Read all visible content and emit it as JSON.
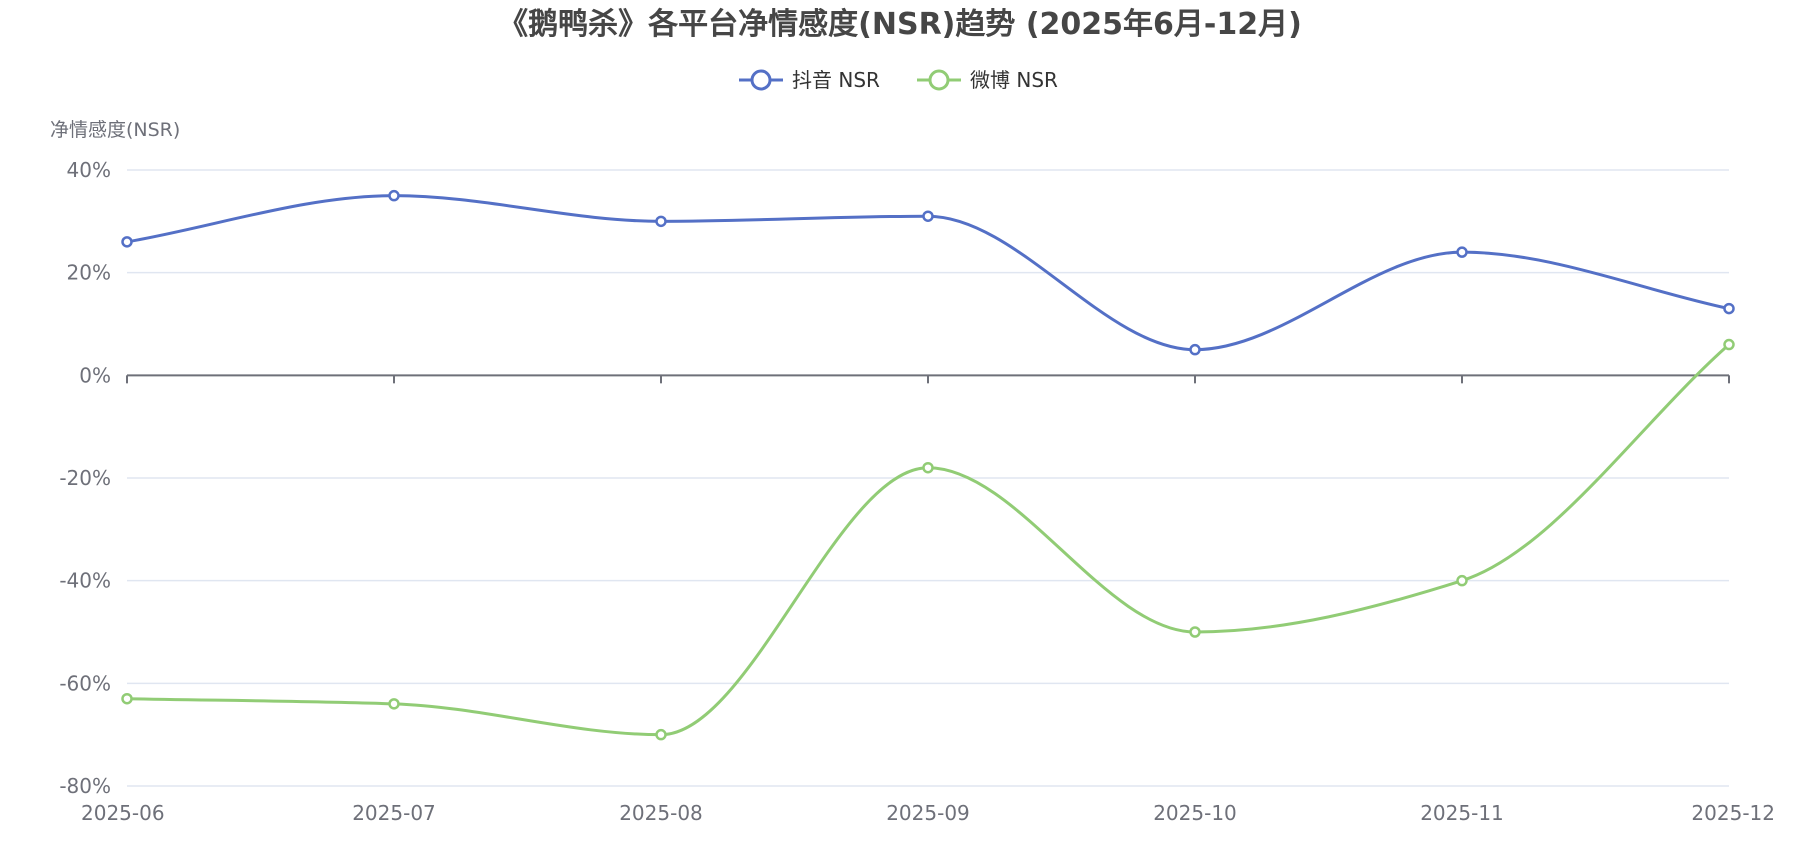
{
  "chart_data": {
    "type": "line",
    "title": "《鹅鸭杀》各平台净情感度(NSR)趋势 (2025年6月-12月)",
    "ylabel": "净情感度(NSR)",
    "xlabel": "",
    "categories": [
      "2025-06",
      "2025-07",
      "2025-08",
      "2025-09",
      "2025-10",
      "2025-11",
      "2025-12"
    ],
    "ylim": [
      -80,
      40
    ],
    "y_ticks": [
      40,
      20,
      0,
      -20,
      -40,
      -60,
      -80
    ],
    "y_tick_labels": [
      "40%",
      "20%",
      "0%",
      "-20%",
      "-40%",
      "-60%",
      "-80%"
    ],
    "grid": true,
    "smooth": true,
    "legend_position": "top-center",
    "series": [
      {
        "name": "抖音 NSR",
        "color": "#5470c6",
        "values": [
          26,
          35,
          30,
          31,
          5,
          24,
          13
        ]
      },
      {
        "name": "微博 NSR",
        "color": "#91cc75",
        "values": [
          -63,
          -64,
          -70,
          -18,
          -50,
          -40,
          6
        ]
      }
    ]
  }
}
